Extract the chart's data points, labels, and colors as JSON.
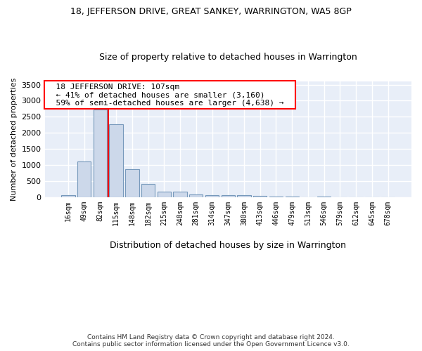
{
  "title": "18, JEFFERSON DRIVE, GREAT SANKEY, WARRINGTON, WA5 8GP",
  "subtitle": "Size of property relative to detached houses in Warrington",
  "xlabel": "Distribution of detached houses by size in Warrington",
  "ylabel": "Number of detached properties",
  "categories": [
    "16sqm",
    "49sqm",
    "82sqm",
    "115sqm",
    "148sqm",
    "182sqm",
    "215sqm",
    "248sqm",
    "281sqm",
    "314sqm",
    "347sqm",
    "380sqm",
    "413sqm",
    "446sqm",
    "479sqm",
    "513sqm",
    "546sqm",
    "579sqm",
    "612sqm",
    "645sqm",
    "678sqm"
  ],
  "values": [
    50,
    1100,
    2730,
    2270,
    870,
    415,
    170,
    170,
    90,
    65,
    50,
    50,
    30,
    25,
    20,
    0,
    10,
    0,
    0,
    0,
    0
  ],
  "bar_color": "#ccd8ea",
  "bar_edge_color": "#7799bb",
  "annotation_text_line1": "18 JEFFERSON DRIVE: 107sqm",
  "annotation_text_line2": "← 41% of detached houses are smaller (3,160)",
  "annotation_text_line3": "59% of semi-detached houses are larger (4,638) →",
  "vline_color": "red",
  "annotation_box_color": "white",
  "annotation_box_edge_color": "red",
  "ylim": [
    0,
    3600
  ],
  "yticks": [
    0,
    500,
    1000,
    1500,
    2000,
    2500,
    3000,
    3500
  ],
  "background_color": "#e8eef8",
  "grid_color": "white",
  "footer_line1": "Contains HM Land Registry data © Crown copyright and database right 2024.",
  "footer_line2": "Contains public sector information licensed under the Open Government Licence v3.0."
}
